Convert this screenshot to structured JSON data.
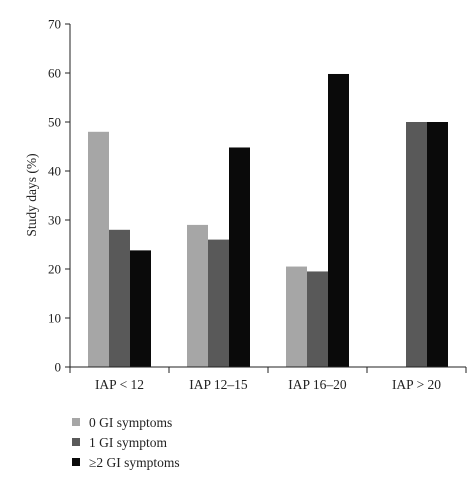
{
  "chart_data": {
    "type": "bar",
    "ylabel": "Study days (%)",
    "ylim": [
      0,
      70
    ],
    "yticks": [
      0,
      10,
      20,
      30,
      40,
      50,
      60,
      70
    ],
    "categories": [
      "IAP < 12",
      "IAP 12–15",
      "IAP 16–20",
      "IAP > 20"
    ],
    "series": [
      {
        "name": "0 GI symptoms",
        "color": "#a6a6a6",
        "values": [
          48,
          29,
          20.5,
          0
        ]
      },
      {
        "name": "1 GI symptom",
        "color": "#595959",
        "values": [
          28,
          26,
          19.5,
          50
        ]
      },
      {
        "name": "≥2 GI symptoms",
        "color": "#0a0a0a",
        "values": [
          23.8,
          44.8,
          59.8,
          50
        ]
      }
    ],
    "legend_position": "bottom-left",
    "grid": false
  }
}
